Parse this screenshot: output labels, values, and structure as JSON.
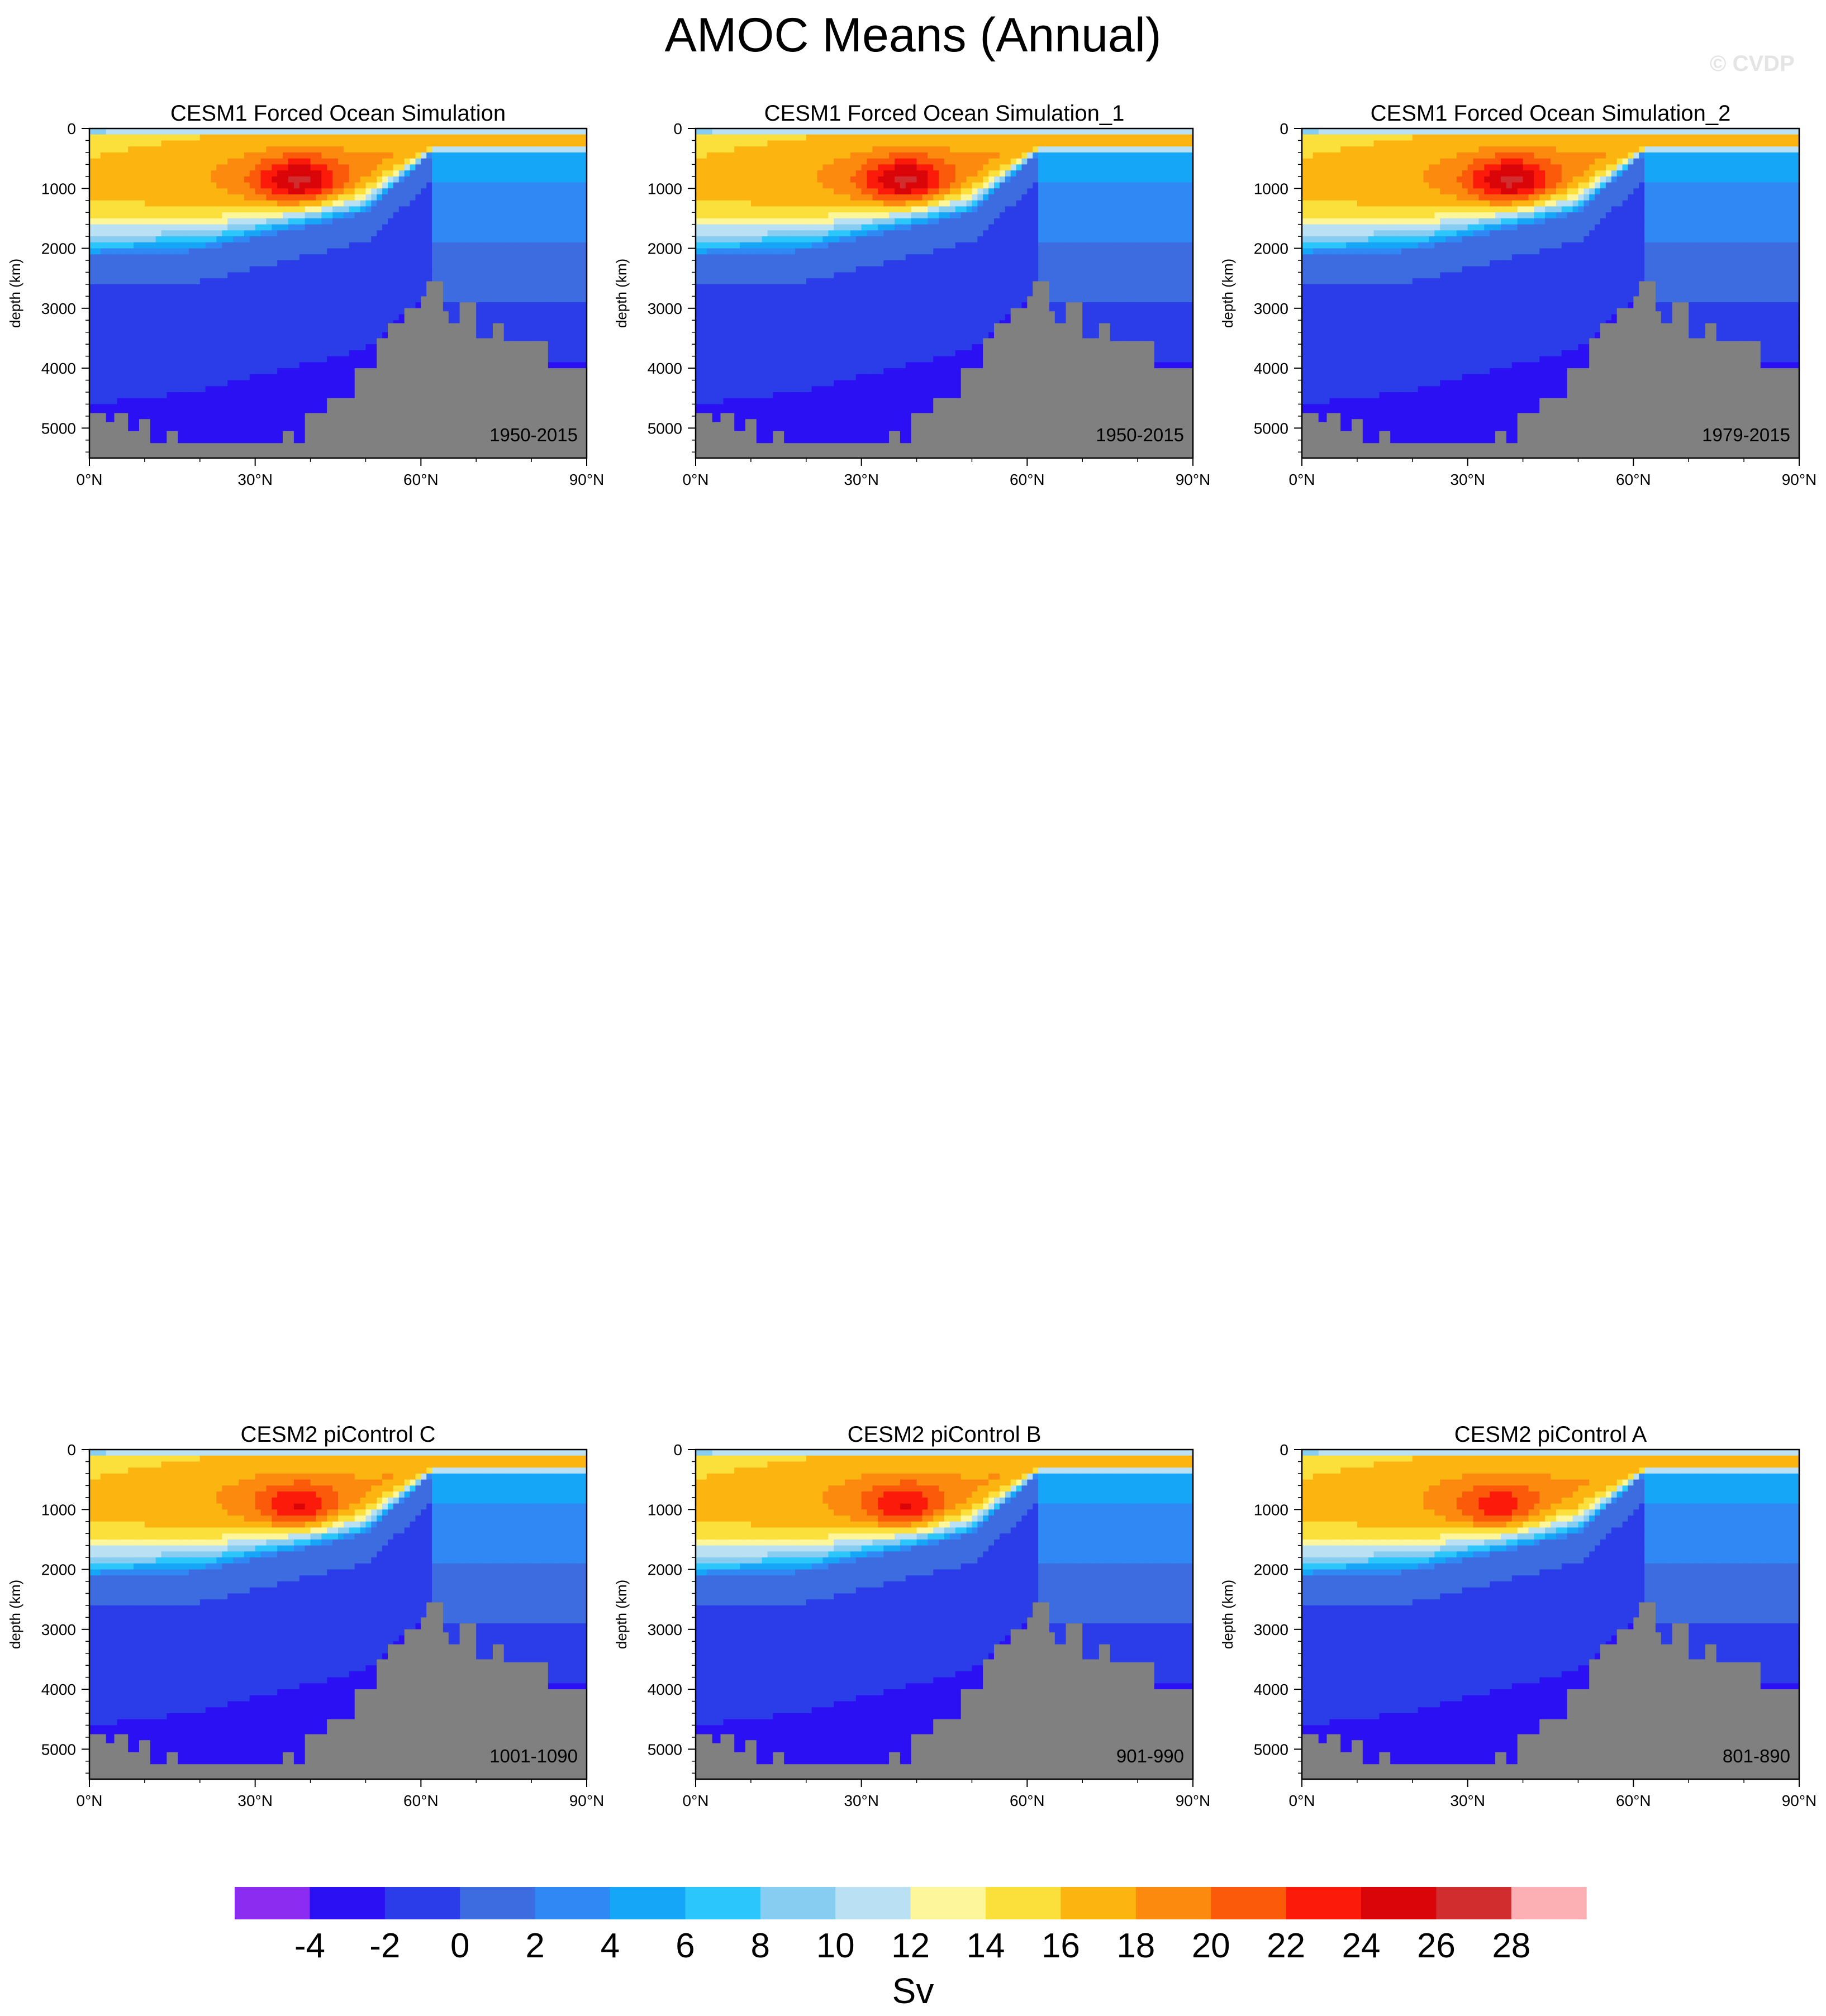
{
  "page": {
    "title": "AMOC Means (Annual)",
    "watermark": "© CVDP"
  },
  "chart_data": [
    {
      "type": "contourf",
      "title": "CESM1 Forced Ocean Simulation",
      "period": "1950-2015",
      "xlabel": "",
      "ylabel": "depth (km)",
      "xlim": [
        0,
        90
      ],
      "ylim": [
        5500,
        0
      ],
      "xticks": [
        "0°N",
        "30°N",
        "60°N",
        "90°N"
      ],
      "yticks": [
        "0",
        "1000",
        "2000",
        "3000",
        "4000",
        "5000"
      ],
      "core": {
        "lat": 38,
        "depth": 900,
        "max": 25
      }
    },
    {
      "type": "contourf",
      "title": "CESM1 Forced Ocean Simulation_1",
      "period": "1950-2015",
      "xlabel": "",
      "ylabel": "depth (km)",
      "xlim": [
        0,
        90
      ],
      "ylim": [
        5500,
        0
      ],
      "xticks": [
        "0°N",
        "30°N",
        "60°N",
        "90°N"
      ],
      "yticks": [
        "0",
        "1000",
        "2000",
        "3000",
        "4000",
        "5000"
      ],
      "core": {
        "lat": 38,
        "depth": 900,
        "max": 25
      }
    },
    {
      "type": "contourf",
      "title": "CESM1 Forced Ocean Simulation_2",
      "period": "1979-2015",
      "xlabel": "",
      "ylabel": "depth (km)",
      "xlim": [
        0,
        90
      ],
      "ylim": [
        5500,
        0
      ],
      "xticks": [
        "0°N",
        "30°N",
        "60°N",
        "90°N"
      ],
      "yticks": [
        "0",
        "1000",
        "2000",
        "3000",
        "4000",
        "5000"
      ],
      "core": {
        "lat": 38,
        "depth": 900,
        "max": 25
      }
    },
    {
      "type": "contourf",
      "title": "CESM2 piControl C",
      "period": "1001-1090",
      "xlabel": "",
      "ylabel": "depth (km)",
      "xlim": [
        0,
        90
      ],
      "ylim": [
        5500,
        0
      ],
      "xticks": [
        "0°N",
        "30°N",
        "60°N",
        "90°N"
      ],
      "yticks": [
        "0",
        "1000",
        "2000",
        "3000",
        "4000",
        "5000"
      ],
      "core": {
        "lat": 38,
        "depth": 1000,
        "max": 23
      }
    },
    {
      "type": "contourf",
      "title": "CESM2 piControl B",
      "period": "901-990",
      "xlabel": "",
      "ylabel": "depth (km)",
      "xlim": [
        0,
        90
      ],
      "ylim": [
        5500,
        0
      ],
      "xticks": [
        "0°N",
        "30°N",
        "60°N",
        "90°N"
      ],
      "yticks": [
        "0",
        "1000",
        "2000",
        "3000",
        "4000",
        "5000"
      ],
      "core": {
        "lat": 38,
        "depth": 1000,
        "max": 23
      }
    },
    {
      "type": "contourf",
      "title": "CESM2 piControl A",
      "period": "801-890",
      "xlabel": "",
      "ylabel": "depth (km)",
      "xlim": [
        0,
        90
      ],
      "ylim": [
        5500,
        0
      ],
      "xticks": [
        "0°N",
        "30°N",
        "60°N",
        "90°N"
      ],
      "yticks": [
        "0",
        "1000",
        "2000",
        "3000",
        "4000",
        "5000"
      ],
      "core": {
        "lat": 36,
        "depth": 1000,
        "max": 22
      }
    }
  ],
  "colorbar": {
    "label": "Sv",
    "tick_labels": [
      "-4",
      "-2",
      "0",
      "2",
      "4",
      "6",
      "8",
      "10",
      "12",
      "14",
      "16",
      "18",
      "20",
      "22",
      "24",
      "26",
      "28"
    ],
    "colors": [
      "#8b2cf0",
      "#2c10f4",
      "#2a3de8",
      "#3c6ce0",
      "#2f88f3",
      "#16a6f8",
      "#2bc6fb",
      "#86cdf1",
      "#b9e0f3",
      "#fdf69a",
      "#fbdf3a",
      "#fbb410",
      "#fb8a0e",
      "#fb5a0a",
      "#fc1b0b",
      "#da0509",
      "#d12d2f",
      "#fdb0b3"
    ]
  },
  "land_color": "#808080"
}
